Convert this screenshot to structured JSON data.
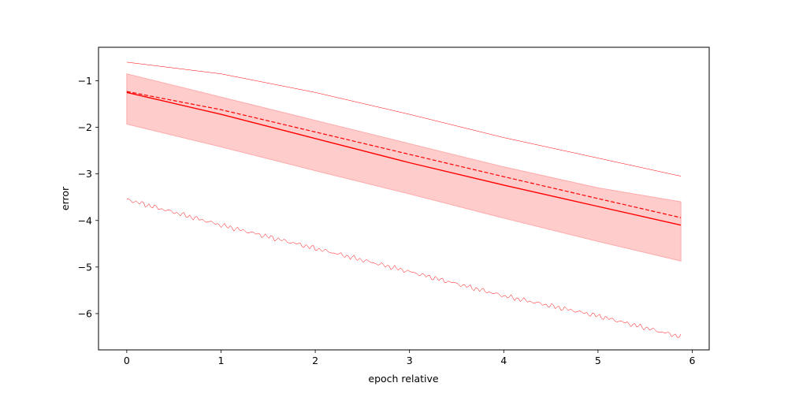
{
  "chart_data": {
    "type": "line",
    "title": "",
    "xlabel": "epoch relative",
    "ylabel": "error",
    "xlim": [
      -0.3,
      6.18
    ],
    "ylim": [
      -6.78,
      -0.28
    ],
    "xticks": [
      0,
      1,
      2,
      3,
      4,
      5,
      6
    ],
    "yticks": [
      -6,
      -5,
      -4,
      -3,
      -2,
      -1
    ],
    "ytick_labels": [
      "−6",
      "−5",
      "−4",
      "−3",
      "−2",
      "−1"
    ],
    "grid": false,
    "legend": "none",
    "color": "#ff0000",
    "band_color": "#ffcccc",
    "series": [
      {
        "role": "mean",
        "style": "solid",
        "x": [
          0,
          1,
          2,
          3,
          4,
          5,
          5.88
        ],
        "y": [
          -1.25,
          -1.72,
          -2.24,
          -2.76,
          -3.24,
          -3.7,
          -4.1
        ]
      },
      {
        "role": "median",
        "style": "dashed",
        "x": [
          0,
          1,
          2,
          3,
          4,
          5,
          5.88
        ],
        "y": [
          -1.23,
          -1.62,
          -2.1,
          -2.58,
          -3.06,
          -3.53,
          -3.94
        ]
      },
      {
        "role": "max",
        "style": "thin",
        "x": [
          0,
          1,
          2,
          3,
          4,
          5,
          5.88
        ],
        "y": [
          -0.6,
          -0.85,
          -1.25,
          -1.72,
          -2.22,
          -2.66,
          -3.05
        ]
      },
      {
        "role": "min",
        "style": "thin-noisy",
        "x": [
          0,
          1,
          2,
          3,
          4,
          5,
          5.88
        ],
        "y": [
          -3.55,
          -4.1,
          -4.6,
          -5.1,
          -5.62,
          -6.05,
          -6.5
        ]
      }
    ],
    "band": {
      "x": [
        0,
        1,
        2,
        3,
        4,
        5,
        5.88
      ],
      "upper": [
        -0.85,
        -1.35,
        -1.85,
        -2.35,
        -2.85,
        -3.3,
        -3.6
      ],
      "lower": [
        -1.93,
        -2.42,
        -2.93,
        -3.43,
        -3.95,
        -4.45,
        -4.87
      ]
    }
  }
}
